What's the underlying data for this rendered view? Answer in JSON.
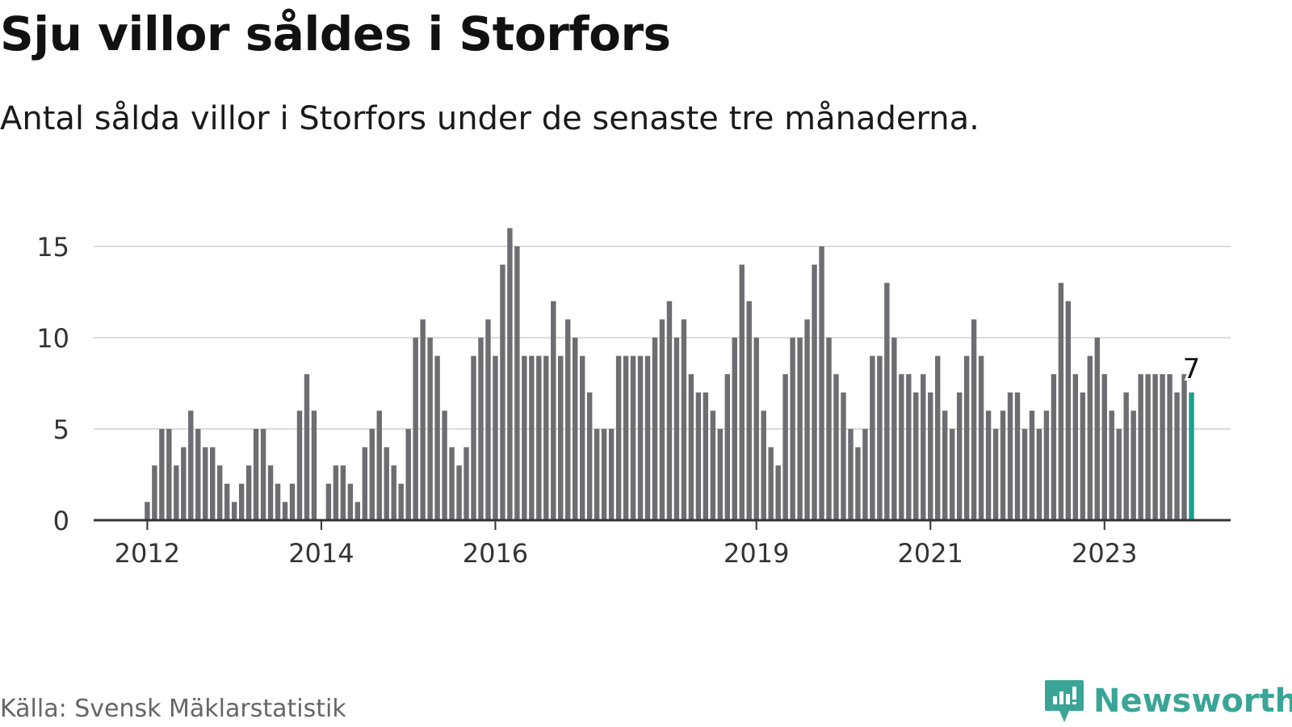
{
  "title": "Sju villor såldes i Storfors",
  "subtitle": "Antal sålda villor i Storfors under de senaste tre månaderna.",
  "source": "Källa: Svensk Mäklarstatistik",
  "brand": {
    "name": "Newsworthy",
    "icon": "newsworthy-logo-icon",
    "color": "#3aa597"
  },
  "colors": {
    "bar": "#6d6d72",
    "highlight": "#1aa090",
    "grid": "#dcdcdc",
    "axis": "#333333"
  },
  "chart_data": {
    "type": "bar",
    "title": "",
    "xlabel": "",
    "ylabel": "",
    "ylim": [
      0,
      16
    ],
    "yticks": [
      0,
      5,
      10,
      15
    ],
    "grid": true,
    "x_tick_labels": [
      "2012",
      "2014",
      "2016",
      "2019",
      "2021",
      "2023"
    ],
    "start_month": "2012-01",
    "values": [
      1,
      3,
      5,
      5,
      3,
      4,
      6,
      5,
      4,
      4,
      3,
      2,
      1,
      2,
      3,
      5,
      5,
      3,
      2,
      1,
      2,
      6,
      8,
      6,
      0,
      2,
      3,
      3,
      2,
      1,
      4,
      5,
      6,
      4,
      3,
      2,
      5,
      10,
      11,
      10,
      9,
      6,
      4,
      3,
      4,
      9,
      10,
      11,
      9,
      14,
      16,
      15,
      9,
      9,
      9,
      9,
      12,
      9,
      11,
      10,
      9,
      7,
      5,
      5,
      5,
      9,
      9,
      9,
      9,
      9,
      10,
      11,
      12,
      10,
      11,
      8,
      7,
      7,
      6,
      5,
      8,
      10,
      14,
      12,
      10,
      6,
      4,
      3,
      8,
      10,
      10,
      11,
      14,
      15,
      10,
      8,
      7,
      5,
      4,
      5,
      9,
      9,
      13,
      10,
      8,
      8,
      7,
      8,
      7,
      9,
      6,
      5,
      7,
      9,
      11,
      9,
      6,
      5,
      6,
      7,
      7,
      5,
      6,
      5,
      6,
      8,
      13,
      12,
      8,
      7,
      9,
      10,
      8,
      6,
      5,
      7,
      6,
      8,
      8,
      8,
      8,
      8,
      7,
      8,
      7
    ],
    "highlight": {
      "value": 7,
      "label": "7"
    }
  }
}
